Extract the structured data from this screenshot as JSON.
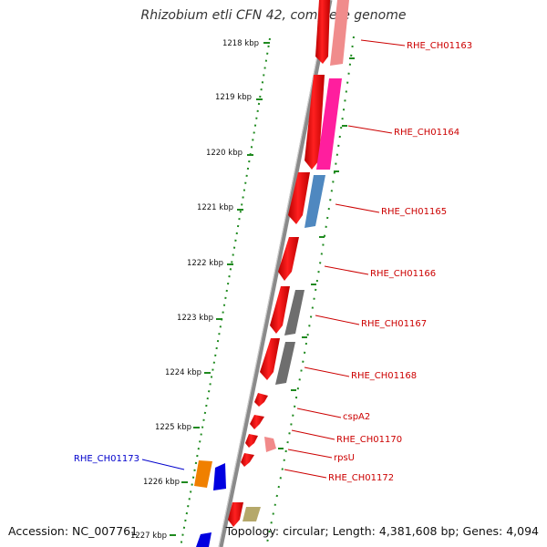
{
  "title": "Rhizobium etli CFN 42, complete genome",
  "footer": {
    "accession": "Accession: NC_007761",
    "summary": "Topology: circular; Length: 4,381,608 bp; Genes: 4,094"
  },
  "colors": {
    "backbone": "#8a8a8a",
    "tick": "#1f8a1f",
    "forward_gene": "#ee0000",
    "label_red": "#cc0000",
    "label_blue": "#0000cc"
  },
  "ruler_ticks": [
    {
      "kbp": 1218,
      "label": "1218 kbp"
    },
    {
      "kbp": 1219,
      "label": "1219 kbp"
    },
    {
      "kbp": 1220,
      "label": "1220 kbp"
    },
    {
      "kbp": 1221,
      "label": "1221 kbp"
    },
    {
      "kbp": 1222,
      "label": "1222 kbp"
    },
    {
      "kbp": 1223,
      "label": "1223 kbp"
    },
    {
      "kbp": 1224,
      "label": "1224 kbp"
    },
    {
      "kbp": 1225,
      "label": "1225 kbp"
    },
    {
      "kbp": 1226,
      "label": "1226 kbp"
    },
    {
      "kbp": 1227,
      "label": "1227 kbp"
    }
  ],
  "genes": [
    {
      "name": "RHE_CH01163",
      "side": "right",
      "color": "#cc0000"
    },
    {
      "name": "RHE_CH01164",
      "side": "right",
      "color": "#cc0000"
    },
    {
      "name": "RHE_CH01165",
      "side": "right",
      "color": "#cc0000"
    },
    {
      "name": "RHE_CH01166",
      "side": "right",
      "color": "#cc0000"
    },
    {
      "name": "RHE_CH01167",
      "side": "right",
      "color": "#cc0000"
    },
    {
      "name": "RHE_CH01168",
      "side": "right",
      "color": "#cc0000"
    },
    {
      "name": "cspA2",
      "side": "right",
      "color": "#cc0000"
    },
    {
      "name": "RHE_CH01170",
      "side": "right",
      "color": "#cc0000"
    },
    {
      "name": "rpsU",
      "side": "right",
      "color": "#cc0000"
    },
    {
      "name": "RHE_CH01172",
      "side": "right",
      "color": "#cc0000"
    },
    {
      "name": "RHE_CH01173",
      "side": "left",
      "color": "#0000cc"
    }
  ]
}
